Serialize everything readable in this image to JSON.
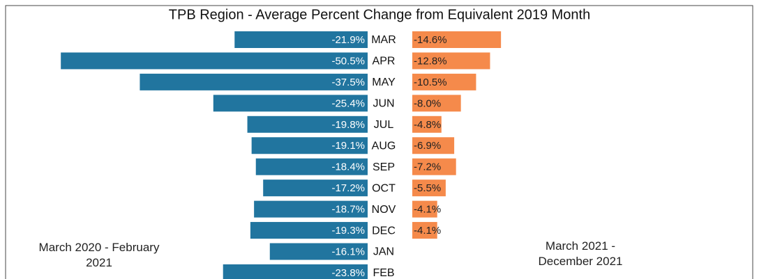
{
  "chart_data": {
    "type": "bar",
    "title": "TPB Region - Average Percent Change from Equivalent 2019 Month",
    "categories": [
      "MAR",
      "APR",
      "MAY",
      "JUN",
      "JUL",
      "AUG",
      "SEP",
      "OCT",
      "NOV",
      "DEC",
      "JAN",
      "FEB"
    ],
    "xlim": [
      -55,
      0
    ],
    "series": [
      {
        "name": "March 2020 - February 2021",
        "color": "#21759f",
        "values": [
          -21.9,
          -50.5,
          -37.5,
          -25.4,
          -19.8,
          -19.1,
          -18.4,
          -17.2,
          -18.7,
          -19.3,
          -16.1,
          -23.8
        ],
        "value_labels": [
          "-21.9%",
          "-50.5%",
          "-37.5%",
          "-25.4%",
          "-19.8%",
          "-19.1%",
          "-18.4%",
          "-17.2%",
          "-18.7%",
          "-19.3%",
          "-16.1%",
          "-23.8%"
        ]
      },
      {
        "name": "March 2021 - December 2021",
        "color": "#f58a4b",
        "values": [
          -14.6,
          -12.8,
          -10.5,
          -8.0,
          -4.8,
          -6.9,
          -7.2,
          -5.5,
          -4.1,
          -4.1,
          null,
          null
        ],
        "value_labels": [
          "-14.6%",
          "-12.8%",
          "-10.5%",
          "-8.0%",
          "-4.8%",
          "-6.9%",
          "-7.2%",
          "-5.5%",
          "-4.1%",
          "-4.1%",
          null,
          null
        ]
      }
    ]
  }
}
